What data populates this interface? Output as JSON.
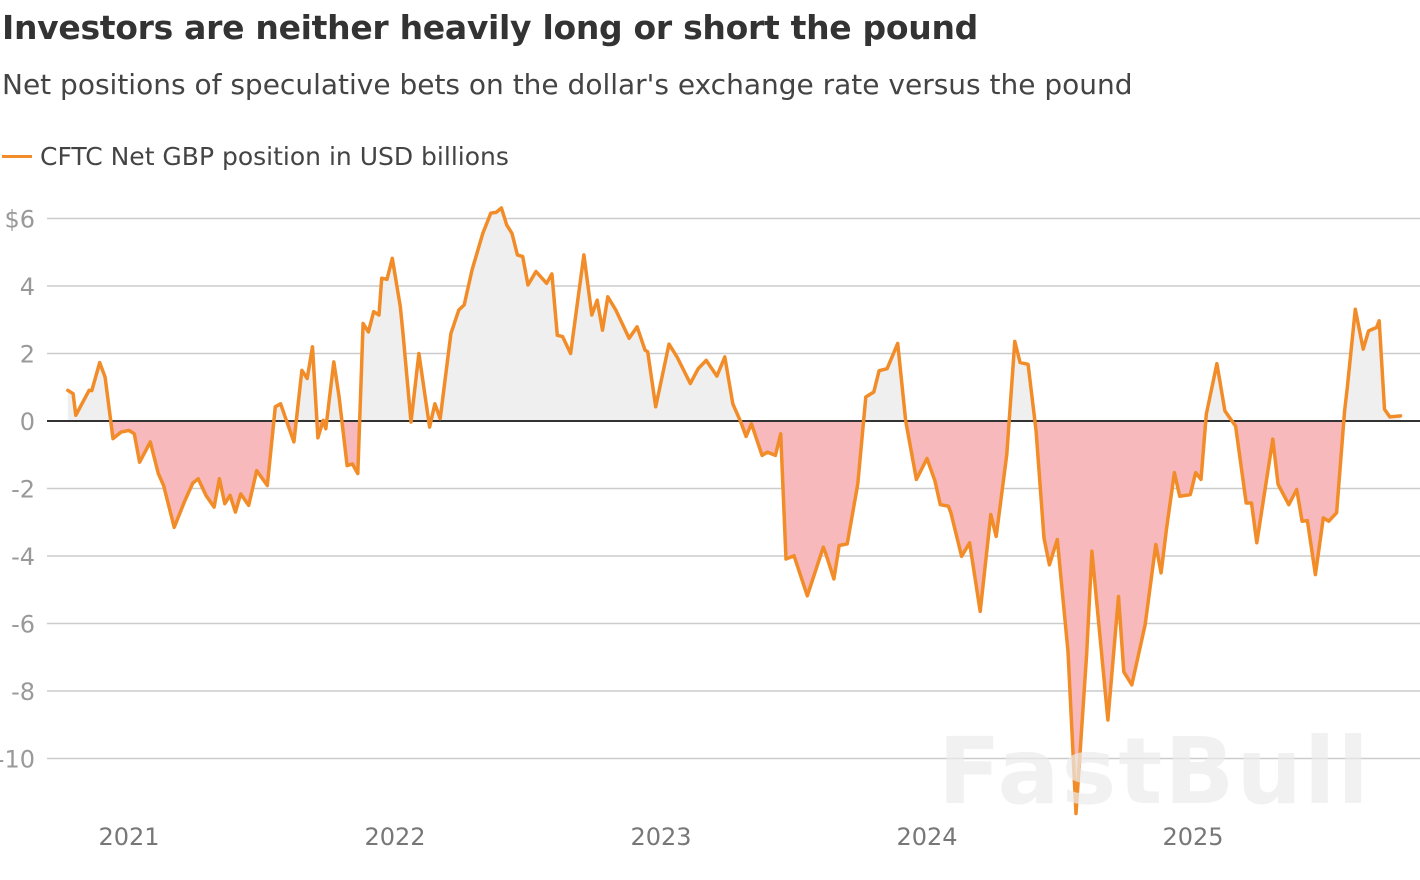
{
  "chart_data": {
    "type": "area",
    "title": "Investors are neither heavily long or short the pound",
    "subtitle": "Net positions of speculative bets on the dollar's exchange rate versus the pound",
    "xlabel": "",
    "ylabel": "",
    "legend": {
      "position": "top-left",
      "entries": [
        "CFTC Net GBP position in USD billions"
      ]
    },
    "series": [
      {
        "name": "CFTC Net GBP position in USD billions",
        "color": "#f28c28"
      }
    ],
    "colors": {
      "line": "#f28c28",
      "positive_fill": "#efefef",
      "negative_fill": "#f7b9bb",
      "zero_line": "#333333",
      "grid": "#cccccc"
    },
    "grid": true,
    "ylim": [
      -12,
      6.6
    ],
    "xlim": [
      2020.7,
      2025.85
    ],
    "y_ticks": [
      {
        "value": 6,
        "label": "$6"
      },
      {
        "value": 4,
        "label": "4"
      },
      {
        "value": 2,
        "label": "2"
      },
      {
        "value": 0,
        "label": "0"
      },
      {
        "value": -2,
        "label": "-2"
      },
      {
        "value": -4,
        "label": "-4"
      },
      {
        "value": -6,
        "label": "-6"
      },
      {
        "value": -8,
        "label": "-8"
      },
      {
        "value": -10,
        "label": "-10"
      }
    ],
    "x_ticks": [
      {
        "value": 2021,
        "label": "2021"
      },
      {
        "value": 2022,
        "label": "2022"
      },
      {
        "value": 2023,
        "label": "2023"
      },
      {
        "value": 2024,
        "label": "2024"
      },
      {
        "value": 2025,
        "label": "2025"
      }
    ],
    "points": [
      [
        2020.77,
        0.91
      ],
      [
        2020.79,
        0.81
      ],
      [
        2020.8,
        0.17
      ],
      [
        2020.85,
        0.91
      ],
      [
        2020.86,
        0.9
      ],
      [
        2020.89,
        1.73
      ],
      [
        2020.91,
        1.3
      ],
      [
        2020.94,
        -0.52
      ],
      [
        2020.97,
        -0.33
      ],
      [
        2021.0,
        -0.28
      ],
      [
        2021.02,
        -0.38
      ],
      [
        2021.04,
        -1.22
      ],
      [
        2021.08,
        -0.62
      ],
      [
        2021.11,
        -1.56
      ],
      [
        2021.13,
        -1.91
      ],
      [
        2021.17,
        -3.15
      ],
      [
        2021.21,
        -2.36
      ],
      [
        2021.24,
        -1.84
      ],
      [
        2021.26,
        -1.71
      ],
      [
        2021.29,
        -2.21
      ],
      [
        2021.32,
        -2.55
      ],
      [
        2021.34,
        -1.71
      ],
      [
        2021.36,
        -2.45
      ],
      [
        2021.38,
        -2.2
      ],
      [
        2021.4,
        -2.7
      ],
      [
        2021.42,
        -2.16
      ],
      [
        2021.45,
        -2.5
      ],
      [
        2021.48,
        -1.47
      ],
      [
        2021.52,
        -1.91
      ],
      [
        2021.55,
        0.42
      ],
      [
        2021.57,
        0.51
      ],
      [
        2021.62,
        -0.62
      ],
      [
        2021.65,
        1.5
      ],
      [
        2021.67,
        1.26
      ],
      [
        2021.69,
        2.2
      ],
      [
        2021.71,
        -0.5
      ],
      [
        2021.73,
        0.02
      ],
      [
        2021.74,
        -0.23
      ],
      [
        2021.77,
        1.75
      ],
      [
        2021.79,
        0.71
      ],
      [
        2021.82,
        -1.32
      ],
      [
        2021.84,
        -1.27
      ],
      [
        2021.86,
        -1.56
      ],
      [
        2021.88,
        2.89
      ],
      [
        2021.9,
        2.64
      ],
      [
        2021.92,
        3.24
      ],
      [
        2021.94,
        3.14
      ],
      [
        2021.95,
        4.23
      ],
      [
        2021.97,
        4.2
      ],
      [
        2021.99,
        4.82
      ],
      [
        2022.02,
        3.39
      ],
      [
        2022.03,
        2.59
      ],
      [
        2022.06,
        -0.03
      ],
      [
        2022.09,
        2.0
      ],
      [
        2022.13,
        -0.18
      ],
      [
        2022.15,
        0.51
      ],
      [
        2022.17,
        0.07
      ],
      [
        2022.21,
        2.59
      ],
      [
        2022.24,
        3.29
      ],
      [
        2022.26,
        3.44
      ],
      [
        2022.29,
        4.48
      ],
      [
        2022.33,
        5.56
      ],
      [
        2022.36,
        6.16
      ],
      [
        2022.38,
        6.18
      ],
      [
        2022.4,
        6.31
      ],
      [
        2022.42,
        5.81
      ],
      [
        2022.44,
        5.56
      ],
      [
        2022.46,
        4.92
      ],
      [
        2022.48,
        4.87
      ],
      [
        2022.5,
        4.03
      ],
      [
        2022.53,
        4.43
      ],
      [
        2022.57,
        4.08
      ],
      [
        2022.59,
        4.36
      ],
      [
        2022.61,
        2.54
      ],
      [
        2022.63,
        2.5
      ],
      [
        2022.66,
        2.0
      ],
      [
        2022.71,
        4.92
      ],
      [
        2022.74,
        3.14
      ],
      [
        2022.76,
        3.58
      ],
      [
        2022.78,
        2.69
      ],
      [
        2022.8,
        3.68
      ],
      [
        2022.83,
        3.29
      ],
      [
        2022.88,
        2.45
      ],
      [
        2022.91,
        2.79
      ],
      [
        2022.94,
        2.1
      ],
      [
        2022.95,
        2.05
      ],
      [
        2022.98,
        0.42
      ],
      [
        2023.03,
        2.28
      ],
      [
        2023.06,
        1.9
      ],
      [
        2023.11,
        1.11
      ],
      [
        2023.14,
        1.55
      ],
      [
        2023.17,
        1.8
      ],
      [
        2023.21,
        1.33
      ],
      [
        2023.24,
        1.9
      ],
      [
        2023.27,
        0.51
      ],
      [
        2023.3,
        -0.03
      ],
      [
        2023.32,
        -0.46
      ],
      [
        2023.34,
        -0.08
      ],
      [
        2023.38,
        -1.02
      ],
      [
        2023.4,
        -0.92
      ],
      [
        2023.43,
        -1.02
      ],
      [
        2023.45,
        -0.38
      ],
      [
        2023.47,
        -4.09
      ],
      [
        2023.5,
        -3.99
      ],
      [
        2023.55,
        -5.18
      ],
      [
        2023.61,
        -3.74
      ],
      [
        2023.62,
        -3.94
      ],
      [
        2023.65,
        -4.68
      ],
      [
        2023.67,
        -3.69
      ],
      [
        2023.7,
        -3.64
      ],
      [
        2023.74,
        -1.86
      ],
      [
        2023.77,
        0.71
      ],
      [
        2023.8,
        0.86
      ],
      [
        2023.82,
        1.49
      ],
      [
        2023.85,
        1.55
      ],
      [
        2023.89,
        2.3
      ],
      [
        2023.92,
        0.0
      ],
      [
        2023.96,
        -1.73
      ],
      [
        2024.0,
        -1.11
      ],
      [
        2024.03,
        -1.78
      ],
      [
        2024.05,
        -2.48
      ],
      [
        2024.08,
        -2.52
      ],
      [
        2024.09,
        -2.72
      ],
      [
        2024.13,
        -4.01
      ],
      [
        2024.16,
        -3.61
      ],
      [
        2024.2,
        -5.64
      ],
      [
        2024.24,
        -2.77
      ],
      [
        2024.26,
        -3.42
      ],
      [
        2024.3,
        -0.99
      ],
      [
        2024.33,
        2.36
      ],
      [
        2024.35,
        1.73
      ],
      [
        2024.38,
        1.68
      ],
      [
        2024.41,
        -0.3
      ],
      [
        2024.44,
        -3.47
      ],
      [
        2024.46,
        -4.26
      ],
      [
        2024.49,
        -3.51
      ],
      [
        2024.53,
        -6.83
      ],
      [
        2024.56,
        -11.63
      ],
      [
        2024.6,
        -6.93
      ],
      [
        2024.62,
        -3.86
      ],
      [
        2024.68,
        -8.86
      ],
      [
        2024.72,
        -5.2
      ],
      [
        2024.74,
        -7.43
      ],
      [
        2024.77,
        -7.82
      ],
      [
        2024.82,
        -6.04
      ],
      [
        2024.86,
        -3.66
      ],
      [
        2024.88,
        -4.5
      ],
      [
        2024.9,
        -3.22
      ],
      [
        2024.93,
        -1.53
      ],
      [
        2024.95,
        -2.23
      ],
      [
        2024.99,
        -2.18
      ],
      [
        2025.01,
        -1.53
      ],
      [
        2025.03,
        -1.73
      ],
      [
        2025.05,
        0.2
      ],
      [
        2025.09,
        1.7
      ],
      [
        2025.12,
        0.3
      ],
      [
        2025.16,
        -0.15
      ],
      [
        2025.2,
        -2.43
      ],
      [
        2025.22,
        -2.43
      ],
      [
        2025.24,
        -3.61
      ],
      [
        2025.3,
        -0.54
      ],
      [
        2025.32,
        -1.88
      ],
      [
        2025.36,
        -2.48
      ],
      [
        2025.39,
        -2.03
      ],
      [
        2025.41,
        -2.97
      ],
      [
        2025.43,
        -2.95
      ],
      [
        2025.46,
        -4.55
      ],
      [
        2025.49,
        -2.87
      ],
      [
        2025.51,
        -2.97
      ],
      [
        2025.54,
        -2.72
      ],
      [
        2025.57,
        0.3
      ],
      [
        2025.58,
        0.99
      ],
      [
        2025.61,
        3.31
      ],
      [
        2025.64,
        2.13
      ],
      [
        2025.66,
        2.67
      ],
      [
        2025.69,
        2.77
      ],
      [
        2025.7,
        2.97
      ],
      [
        2025.72,
        0.35
      ],
      [
        2025.74,
        0.12
      ],
      [
        2025.78,
        0.15
      ]
    ]
  },
  "watermark": "FastBull"
}
